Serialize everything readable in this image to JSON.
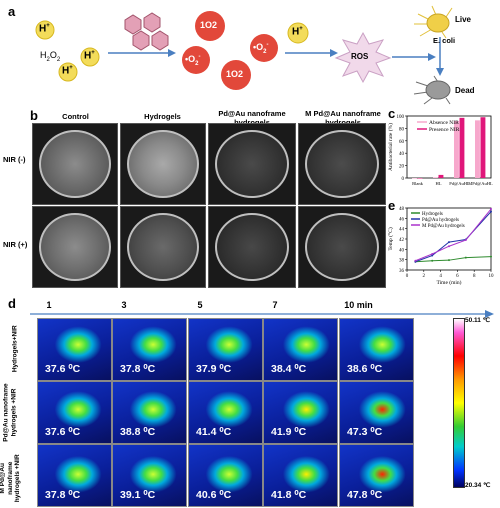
{
  "panels": {
    "a": {
      "letter": "a",
      "h_plus": "H",
      "h_plus_sup": "+",
      "h2o2": "H",
      "h2o2_sub": "2",
      "h2o2_o": "O",
      "h2o2_sub2": "2",
      "singlet_o2": "1O2",
      "superoxide": "•O",
      "superoxide_sub": "2",
      "superoxide_sup": "-",
      "ros": "ROS",
      "live": "Live",
      "ecoli": "E. coli",
      "dead": "Dead"
    },
    "b": {
      "letter": "b",
      "columns": [
        "Control",
        "Hydrogels",
        "Pd@Au nanoframe hydrogels",
        "M Pd@Au nanoframe hydrogels"
      ],
      "rows": [
        "NIR (-)",
        "NIR (+)"
      ]
    },
    "c": {
      "letter": "c",
      "ylabel": "Antibacterial rate (%)",
      "legend": [
        "Absence NIR",
        "Presence NIR"
      ]
    },
    "e": {
      "letter": "e",
      "ylabel": "Temp (°C)",
      "xlabel": "Time (min)",
      "legend": [
        "Hydrogels",
        "Pd@Au hydrogels",
        "M Pd@Au hydrogels"
      ]
    },
    "d": {
      "letter": "d",
      "times": [
        "1",
        "3",
        "5",
        "7",
        "10 min"
      ],
      "rows": [
        {
          "label": "Hydrogels+NIR",
          "temps": [
            "37.6 ⁰C",
            "37.8 ⁰C",
            "37.9 ⁰C",
            "38.4 ⁰C",
            "38.6 ⁰C"
          ]
        },
        {
          "label": "Pd@Au nanoframe hydrogels +NIR",
          "temps": [
            "37.6 ⁰C",
            "38.8 ⁰C",
            "41.4 ⁰C",
            "41.9 ⁰C",
            "47.3 ⁰C"
          ]
        },
        {
          "label": "M Pd@Au nanoframe hydrogels +NIR",
          "temps": [
            "37.8 ⁰C",
            "39.1 ⁰C",
            "40.6 ⁰C",
            "41.8 ⁰C",
            "47.8 ⁰C"
          ]
        }
      ],
      "scale_max": "50.11 ℃",
      "scale_min": "20.34 ℃"
    }
  },
  "chart_data": [
    {
      "type": "bar",
      "panel": "c",
      "categories": [
        "Blank",
        "HL",
        "Pd@AuHL",
        "MPd@AuHL"
      ],
      "series": [
        {
          "name": "Absence NIR",
          "values": [
            0,
            1,
            92,
            93
          ]
        },
        {
          "name": "Presence NIR",
          "values": [
            0,
            5,
            97,
            98
          ]
        }
      ],
      "ylabel": "Antibacterial rate (%)",
      "ylim": [
        0,
        100
      ],
      "yticks": [
        "0",
        "20",
        "40",
        "60",
        "80",
        "100"
      ],
      "colors": {
        "Absence NIR": "#f7a8cc",
        "Presence NIR": "#e0177a"
      }
    },
    {
      "type": "line",
      "panel": "e",
      "xlabel": "Time (min)",
      "ylabel": "Temp (°C)",
      "xlim": [
        0,
        10
      ],
      "ylim": [
        36,
        48
      ],
      "xticks": [
        "0",
        "2",
        "4",
        "6",
        "8",
        "10"
      ],
      "yticks": [
        "36",
        "38",
        "40",
        "42",
        "44",
        "46",
        "48"
      ],
      "series": [
        {
          "name": "Hydrogels",
          "color": "#2e8b2e",
          "x": [
            1,
            3,
            5,
            7,
            10
          ],
          "y": [
            37.6,
            37.8,
            37.9,
            38.4,
            38.6
          ]
        },
        {
          "name": "Pd@Au hydrogels",
          "color": "#2233aa",
          "x": [
            1,
            3,
            5,
            7,
            10
          ],
          "y": [
            37.6,
            38.8,
            41.4,
            41.9,
            47.3
          ]
        },
        {
          "name": "M Pd@Au hydrogels",
          "color": "#aa33cc",
          "x": [
            1,
            3,
            5,
            7,
            10
          ],
          "y": [
            37.8,
            39.1,
            40.6,
            41.8,
            47.8
          ]
        }
      ]
    }
  ]
}
